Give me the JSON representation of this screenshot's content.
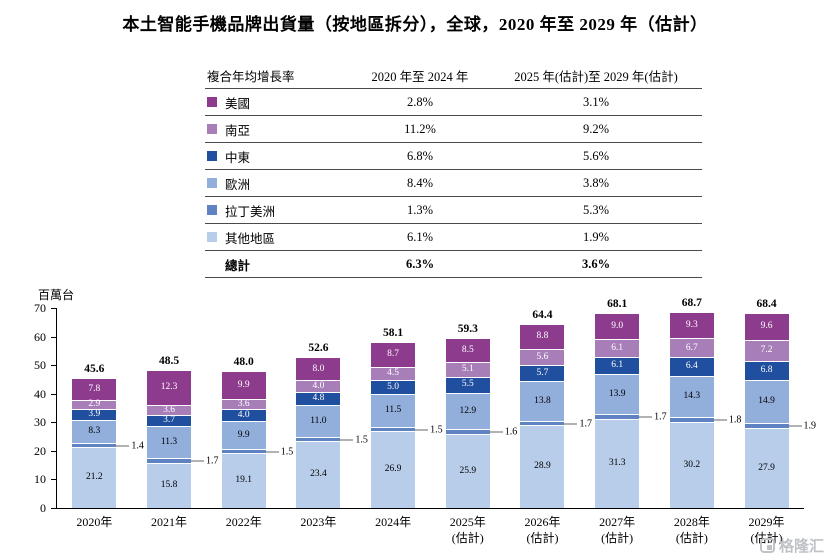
{
  "title": "本土智能手機品牌出貨量（按地區拆分），全球，2020 年至 2029 年（估計）",
  "table": {
    "col_headers": [
      "複合年均增長率",
      "2020 年至 2024 年",
      "2025 年(估計)至 2029 年(估計)"
    ],
    "rows": [
      {
        "region": "美國",
        "key": "us",
        "color": "#8d3b8d",
        "v1": "2.8%",
        "v2": "3.1%"
      },
      {
        "region": "南亞",
        "key": "south-asia",
        "color": "#a87eb9",
        "v1": "11.2%",
        "v2": "9.2%"
      },
      {
        "region": "中東",
        "key": "middle-east",
        "color": "#1f4f9e",
        "v1": "6.8%",
        "v2": "5.6%"
      },
      {
        "region": "歐洲",
        "key": "europe",
        "color": "#92aedb",
        "v1": "8.4%",
        "v2": "3.8%"
      },
      {
        "region": "拉丁美洲",
        "key": "latin-america",
        "color": "#5f82c3",
        "v1": "1.3%",
        "v2": "5.3%"
      },
      {
        "region": "其他地區",
        "key": "other-regions",
        "color": "#b7cde9",
        "v1": "6.1%",
        "v2": "1.9%"
      }
    ],
    "total_row": {
      "label": "總計",
      "v1": "6.3%",
      "v2": "3.6%"
    }
  },
  "chart_data": {
    "type": "bar",
    "stacked": true,
    "ylabel": "百萬台",
    "ylim": [
      0,
      70
    ],
    "yticks": [
      0,
      10,
      20,
      30,
      40,
      50,
      60,
      70
    ],
    "grid": false,
    "categories": [
      "2020年",
      "2021年",
      "2022年",
      "2023年",
      "2024年",
      "2025年",
      "2026年",
      "2027年",
      "2028年",
      "2029年"
    ],
    "category_sublabels": [
      "",
      "",
      "",
      "",
      "",
      "(估計)",
      "(估計)",
      "(估計)",
      "(估計)",
      "(估計)"
    ],
    "totals": [
      45.6,
      48.5,
      48.0,
      52.6,
      58.1,
      59.3,
      64.4,
      68.1,
      68.7,
      68.4
    ],
    "series": [
      {
        "name": "其他地區",
        "key": "other-regions",
        "color": "#b7cde9",
        "text": "#000000",
        "values": [
          21.2,
          15.8,
          19.1,
          23.4,
          26.9,
          25.9,
          28.9,
          31.3,
          30.2,
          27.9
        ]
      },
      {
        "name": "拉丁美洲",
        "key": "latin-america",
        "color": "#5f82c3",
        "text": "#000000",
        "label_outside": true,
        "values": [
          1.4,
          1.7,
          1.5,
          1.5,
          1.5,
          1.6,
          1.7,
          1.7,
          1.8,
          1.9
        ]
      },
      {
        "name": "歐洲",
        "key": "europe",
        "color": "#92aedb",
        "text": "#000000",
        "values": [
          8.3,
          11.3,
          9.9,
          11.0,
          11.5,
          12.9,
          13.8,
          13.9,
          14.3,
          14.9
        ]
      },
      {
        "name": "中東",
        "key": "middle-east",
        "color": "#1f4f9e",
        "text": "#ffffff",
        "values": [
          3.9,
          3.7,
          4.0,
          4.8,
          5.0,
          5.5,
          5.7,
          6.1,
          6.4,
          6.8
        ]
      },
      {
        "name": "南亞",
        "key": "south-asia",
        "color": "#a87eb9",
        "text": "#ffffff",
        "values": [
          2.9,
          3.6,
          3.6,
          4.0,
          4.5,
          5.1,
          5.6,
          6.1,
          6.7,
          7.2
        ]
      },
      {
        "name": "美國",
        "key": "us",
        "color": "#8d3b8d",
        "text": "#ffffff",
        "values": [
          7.8,
          12.3,
          9.9,
          8.0,
          8.7,
          8.5,
          8.8,
          9.0,
          9.3,
          9.6
        ]
      }
    ]
  },
  "watermark": {
    "text": "格隆汇"
  }
}
